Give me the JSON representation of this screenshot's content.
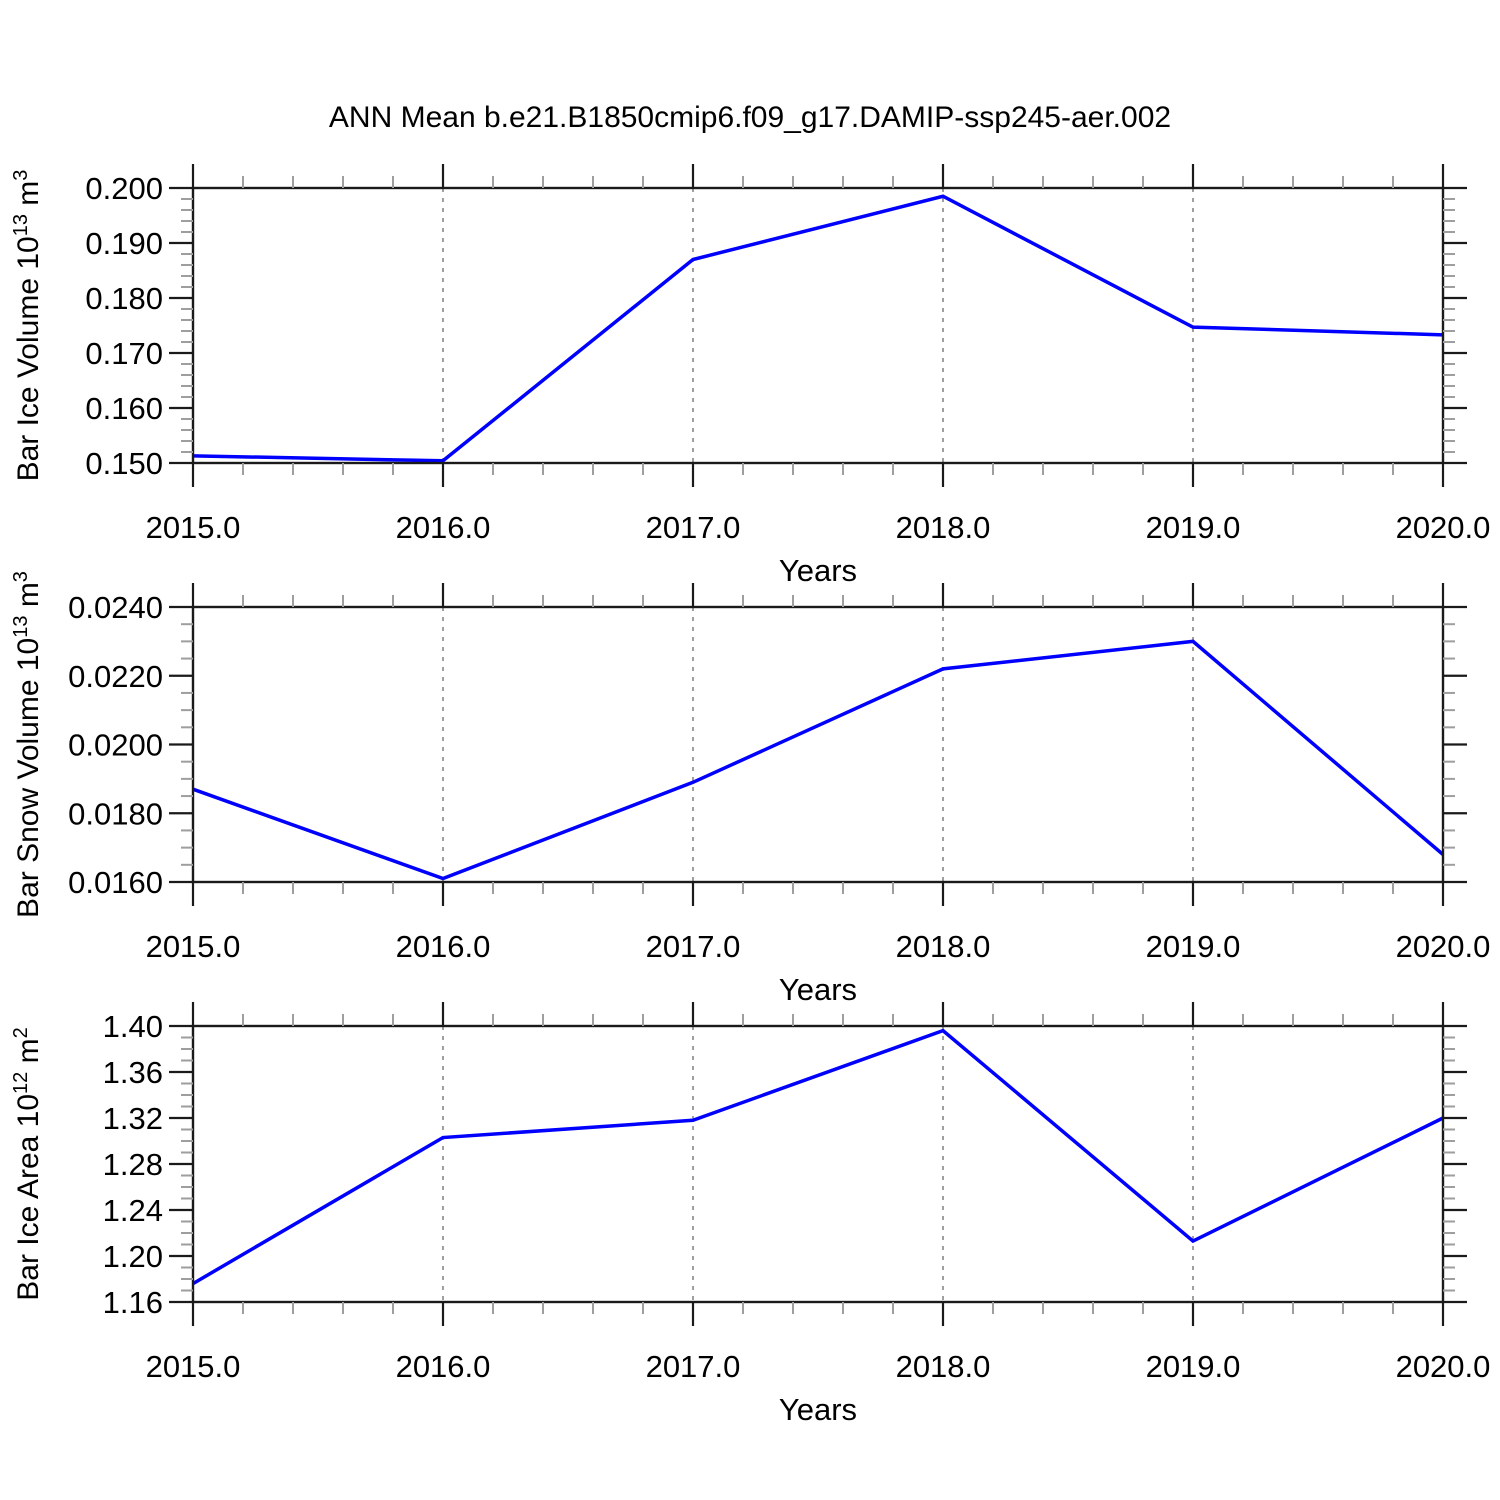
{
  "title": "ANN Mean b.e21.B1850cmip6.f09_g17.DAMIP-ssp245-aer.002",
  "line_color": "#0000ff",
  "gridline_color": "#888888",
  "axis_color": "#1a1a1a",
  "minor_tick_color": "#9e9e9e",
  "chart_data": [
    {
      "type": "line",
      "name": "bar-ice-volume",
      "ylabel": "Bar Ice Volume 10^13 m^3",
      "ylabel_parts": [
        [
          "t",
          "Bar Ice Volume 10"
        ],
        [
          "s",
          "13"
        ],
        [
          "t",
          " m"
        ],
        [
          "s",
          "3"
        ]
      ],
      "xlabel": "Years",
      "x": [
        2015,
        2016,
        2017,
        2018,
        2019,
        2020
      ],
      "values": [
        0.1513,
        0.1504,
        0.187,
        0.1985,
        0.1747,
        0.1733
      ],
      "xlim": [
        2015,
        2020
      ],
      "ylim": [
        0.15,
        0.2
      ],
      "ytick_step": 0.01,
      "yminor_step": 0.002,
      "ytick_labels": [
        "0.150",
        "0.160",
        "0.170",
        "0.180",
        "0.190",
        "0.200"
      ],
      "xtick_labels": [
        "2015.0",
        "2016.0",
        "2017.0",
        "2018.0",
        "2019.0",
        "2020.0"
      ],
      "xminor_step": 0.2,
      "gridlines_x": [
        2016,
        2017,
        2018,
        2019
      ],
      "grid": "vertical-dashed",
      "legend": "none"
    },
    {
      "type": "line",
      "name": "bar-snow-volume",
      "ylabel": "Bar Snow Volume 10^13 m^3",
      "ylabel_parts": [
        [
          "t",
          "Bar Snow Volume 10"
        ],
        [
          "s",
          "13"
        ],
        [
          "t",
          " m"
        ],
        [
          "s",
          "3"
        ]
      ],
      "xlabel": "Years",
      "x": [
        2015,
        2016,
        2017,
        2018,
        2019,
        2020
      ],
      "values": [
        0.0187,
        0.0161,
        0.0189,
        0.0222,
        0.023,
        0.0168
      ],
      "xlim": [
        2015,
        2020
      ],
      "ylim": [
        0.016,
        0.024
      ],
      "ytick_step": 0.002,
      "yminor_step": 0.0005,
      "ytick_labels": [
        "0.0160",
        "0.0180",
        "0.0200",
        "0.0220",
        "0.0240"
      ],
      "xtick_labels": [
        "2015.0",
        "2016.0",
        "2017.0",
        "2018.0",
        "2019.0",
        "2020.0"
      ],
      "xminor_step": 0.2,
      "gridlines_x": [
        2016,
        2017,
        2018,
        2019
      ],
      "grid": "vertical-dashed",
      "legend": "none"
    },
    {
      "type": "line",
      "name": "bar-ice-area",
      "ylabel": "Bar Ice Area 10^12 m^2",
      "ylabel_parts": [
        [
          "t",
          "Bar Ice Area 10"
        ],
        [
          "s",
          "12"
        ],
        [
          "t",
          " m"
        ],
        [
          "s",
          "2"
        ]
      ],
      "xlabel": "Years",
      "x": [
        2015,
        2016,
        2017,
        2018,
        2019,
        2020
      ],
      "values": [
        1.176,
        1.303,
        1.318,
        1.396,
        1.213,
        1.32
      ],
      "xlim": [
        2015,
        2020
      ],
      "ylim": [
        1.16,
        1.4
      ],
      "ytick_step": 0.04,
      "yminor_step": 0.01,
      "ytick_labels": [
        "1.16",
        "1.20",
        "1.24",
        "1.28",
        "1.32",
        "1.36",
        "1.40"
      ],
      "xtick_labels": [
        "2015.0",
        "2016.0",
        "2017.0",
        "2018.0",
        "2019.0",
        "2020.0"
      ],
      "xminor_step": 0.2,
      "gridlines_x": [
        2016,
        2017,
        2018,
        2019
      ],
      "grid": "vertical-dashed",
      "legend": "none"
    }
  ]
}
